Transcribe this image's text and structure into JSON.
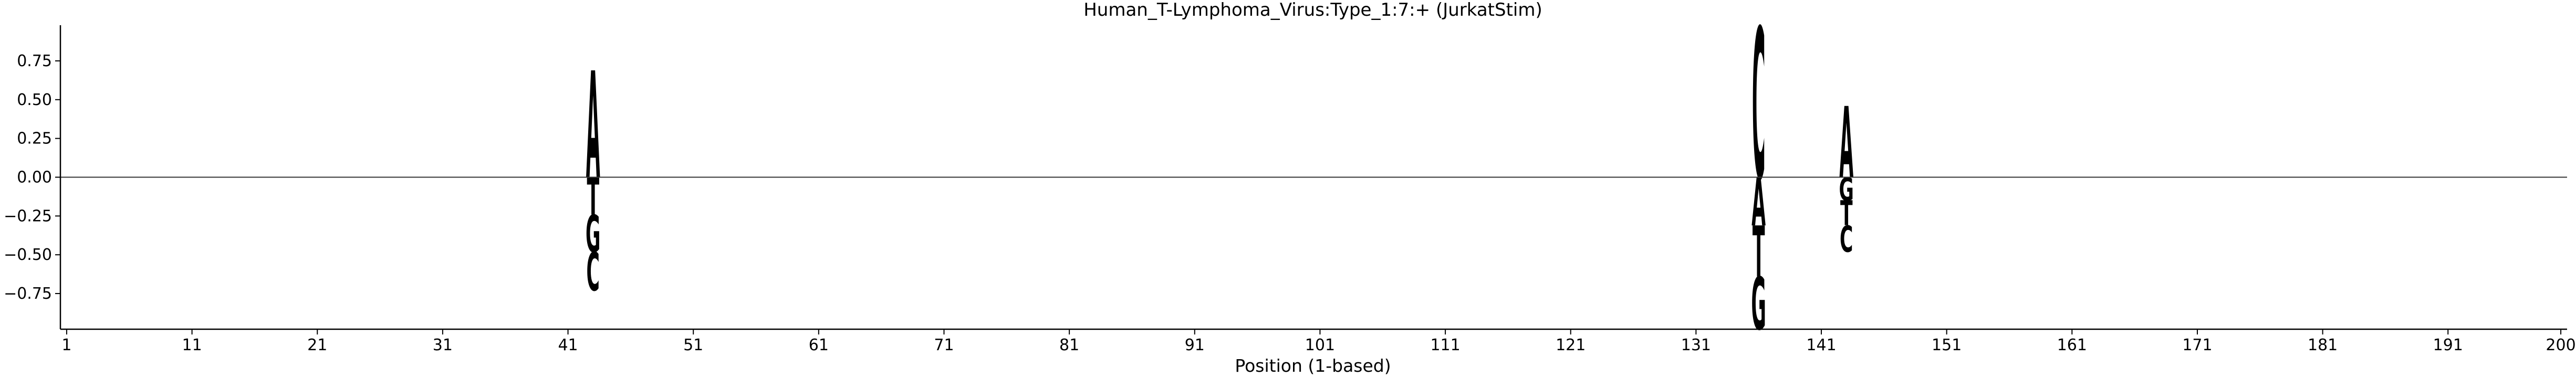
{
  "chart_data": {
    "type": "sequence-logo",
    "title": "Human_T-Lymphoma_Virus:Type_1:7:+  (JurkatStim)",
    "xlabel": "Position (1-based)",
    "ylabel": "",
    "xlim": [
      0.5,
      200.5
    ],
    "ylim": [
      -0.98,
      0.98
    ],
    "x_ticks": [
      1,
      11,
      21,
      31,
      41,
      51,
      61,
      71,
      81,
      91,
      101,
      111,
      121,
      131,
      141,
      151,
      161,
      171,
      181,
      191,
      200
    ],
    "y_ticks": [
      -0.75,
      -0.5,
      -0.25,
      0.0,
      0.25,
      0.5,
      0.75
    ],
    "y_tick_labels": [
      "−0.75",
      "−0.50",
      "−0.25",
      "0.00",
      "0.25",
      "0.50",
      "0.75"
    ],
    "grid": false,
    "baseline": true,
    "colors": {
      "A": "#008000",
      "C": "#0000ff",
      "G": "#ffa500",
      "T": "#ff0000"
    },
    "positions": [
      {
        "pos": 43,
        "letters": [
          {
            "base": "A",
            "value": 0.69
          },
          {
            "base": "T",
            "value": -0.24
          },
          {
            "base": "G",
            "value": -0.24
          },
          {
            "base": "C",
            "value": -0.25
          }
        ]
      },
      {
        "pos": 136,
        "letters": [
          {
            "base": "C",
            "value": 0.97
          },
          {
            "base": "T",
            "value": -0.33
          },
          {
            "base": "G",
            "value": -0.34
          },
          {
            "base": "A",
            "value": -0.31
          }
        ]
      },
      {
        "pos": 143,
        "letters": [
          {
            "base": "A",
            "value": 0.46
          },
          {
            "base": "T",
            "value": -0.16
          },
          {
            "base": "G",
            "value": -0.15
          },
          {
            "base": "C",
            "value": -0.17
          }
        ]
      }
    ]
  }
}
